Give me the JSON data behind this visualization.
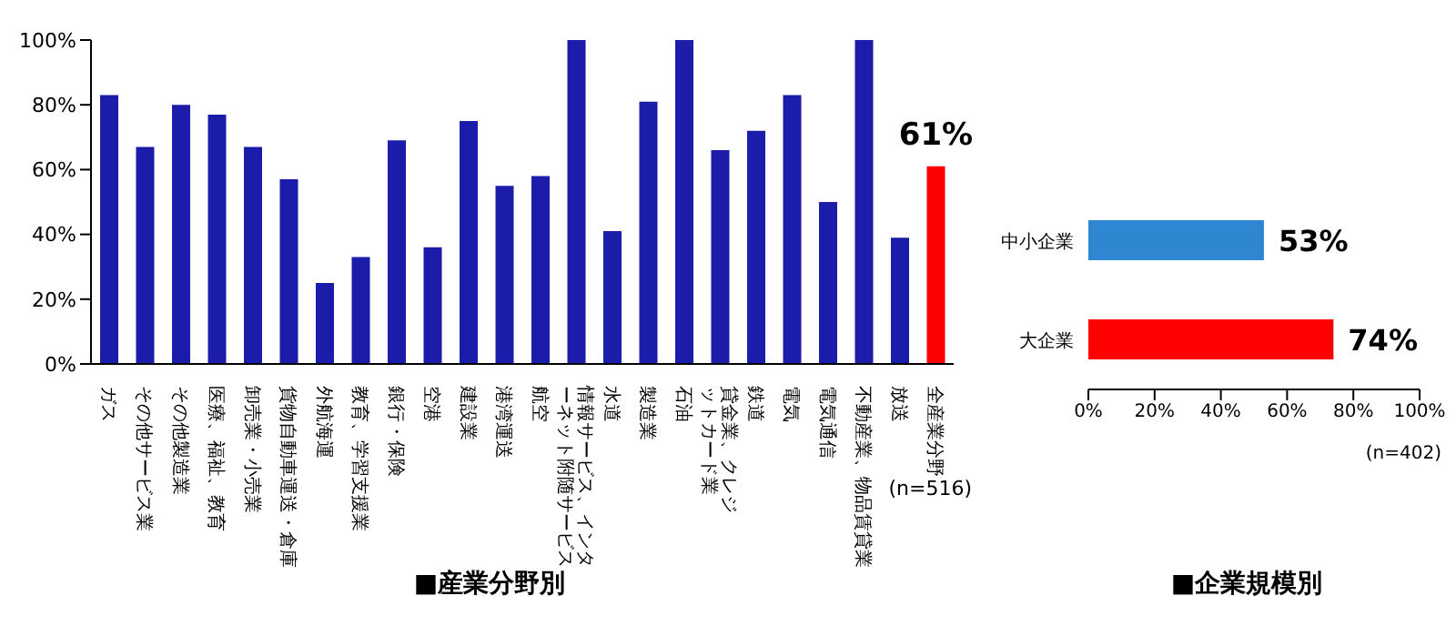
{
  "chart_data": [
    {
      "type": "bar",
      "title": "■産業分野別",
      "categories": [
        "ガス",
        "その他サービス業",
        "その他製造業",
        "医療、福祉、教育",
        "卸売業・小売業",
        "貨物自動車運送・倉庫",
        "外航海運",
        "教育、学習支援業",
        "銀行・保険",
        "空港",
        "建設業",
        "港湾運送",
        "航空",
        "情報サービス、インターネット附随サービス",
        "水道",
        "製造業",
        "石油",
        "貸金業、クレジットカード業",
        "鉄道",
        "電気",
        "電気通信",
        "不動産業、物品賃貸業",
        "放送",
        "全産業分野"
      ],
      "values": [
        83,
        67,
        80,
        77,
        67,
        57,
        25,
        33,
        69,
        36,
        75,
        55,
        58,
        100,
        41,
        81,
        100,
        66,
        72,
        83,
        50,
        100,
        39,
        61
      ],
      "colors": [
        "#1c1caa",
        "#1c1caa",
        "#1c1caa",
        "#1c1caa",
        "#1c1caa",
        "#1c1caa",
        "#1c1caa",
        "#1c1caa",
        "#1c1caa",
        "#1c1caa",
        "#1c1caa",
        "#1c1caa",
        "#1c1caa",
        "#1c1caa",
        "#1c1caa",
        "#1c1caa",
        "#1c1caa",
        "#1c1caa",
        "#1c1caa",
        "#1c1caa",
        "#1c1caa",
        "#1c1caa",
        "#1c1caa",
        "#ff0000"
      ],
      "value_labels": [
        null,
        null,
        null,
        null,
        null,
        null,
        null,
        null,
        null,
        null,
        null,
        null,
        null,
        null,
        null,
        null,
        null,
        null,
        null,
        null,
        null,
        null,
        null,
        "61%"
      ],
      "ylim": [
        0,
        100
      ],
      "yticks": [
        {
          "value": 0,
          "label": "0%"
        },
        {
          "value": 20,
          "label": "20%"
        },
        {
          "value": 40,
          "label": "40%"
        },
        {
          "value": 60,
          "label": "60%"
        },
        {
          "value": 80,
          "label": "80%"
        },
        {
          "value": 100,
          "label": "100%"
        }
      ],
      "annotations": [
        "(n=516)"
      ]
    },
    {
      "type": "bar",
      "orientation": "horizontal",
      "title": "■企業規模別",
      "categories": [
        "中小企業",
        "大企業"
      ],
      "values": [
        53,
        74
      ],
      "colors": [
        "#2f86d1",
        "#ff0000"
      ],
      "value_labels": [
        "53%",
        "74%"
      ],
      "xlim": [
        0,
        100
      ],
      "xticks": [
        {
          "value": 0,
          "label": "0%"
        },
        {
          "value": 20,
          "label": "20%"
        },
        {
          "value": 40,
          "label": "40%"
        },
        {
          "value": 60,
          "label": "60%"
        },
        {
          "value": 80,
          "label": "80%"
        },
        {
          "value": 100,
          "label": "100%"
        }
      ],
      "annotations": [
        "(n=402)"
      ]
    }
  ]
}
